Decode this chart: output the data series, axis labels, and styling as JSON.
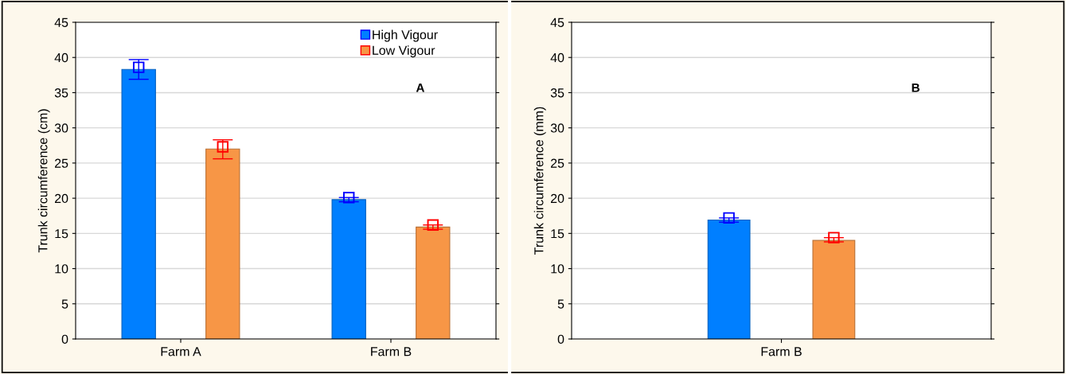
{
  "chart_data": [
    {
      "type": "bar",
      "categories": [
        "Farm A",
        "Farm B"
      ],
      "ylabel": "Trunk circumference (cm)",
      "ylim": [
        0,
        45
      ],
      "yticks": [
        0,
        5,
        10,
        15,
        20,
        25,
        30,
        35,
        40,
        45
      ],
      "grid": "y",
      "legend": "top right",
      "marker": "square",
      "annotations": [
        "A"
      ],
      "series": [
        {
          "name": "High Vigour",
          "color": "#007fff",
          "values": [
            38.3,
            19.8
          ]
        },
        {
          "name": "Low Vigour",
          "color": "#f79646",
          "values": [
            27.0,
            15.9
          ]
        },
        {
          "type": "scatter",
          "color": "#0000ff",
          "values": [
            38.6,
            20.1
          ],
          "errors": [
            [
              36.9,
              39.7
            ],
            [
              19.5,
              20.1
            ]
          ]
        },
        {
          "type": "scatter",
          "color": "#ff0000",
          "values": [
            27.3,
            16.2
          ],
          "errors": [
            [
              25.6,
              28.3
            ],
            [
              15.6,
              16.2
            ]
          ]
        }
      ]
    },
    {
      "type": "bar",
      "categories": [
        "Farm B"
      ],
      "ylabel": "Trunk circumference (mm)",
      "ylim": [
        0,
        45
      ],
      "yticks": [
        0,
        5,
        10,
        15,
        20,
        25,
        30,
        35,
        40,
        45
      ],
      "grid": "y",
      "marker": "square",
      "annotations": [
        "B"
      ],
      "series": [
        {
          "color": "#007fff",
          "values": [
            16.9
          ]
        },
        {
          "color": "#f79646",
          "values": [
            14.0
          ]
        },
        {
          "type": "scatter",
          "color": "#0000ff",
          "values": [
            17.2
          ],
          "errors": [
            [
              16.6,
              17.2
            ]
          ]
        },
        {
          "type": "scatter",
          "color": "#ff0000",
          "values": [
            14.4
          ],
          "errors": [
            [
              13.8,
              14.4
            ]
          ]
        }
      ]
    }
  ]
}
